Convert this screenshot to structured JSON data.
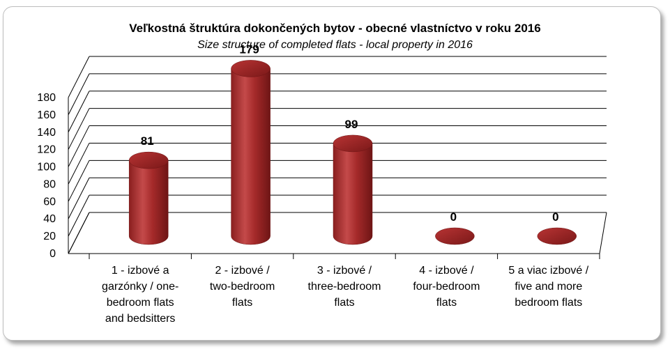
{
  "chart_data": {
    "type": "bar",
    "style": "3d-cylinder",
    "title": "Veľkostná štruktúra dokončených bytov  - obecné vlastníctvo v  roku 2016",
    "subtitle": "Size structure of completed flats - local property in 2016",
    "categories": [
      [
        "1 - izbové a",
        "garzónky / one-",
        "bedroom flats",
        "and bedsitters"
      ],
      [
        "2 - izbové /",
        "two-bedroom",
        "flats"
      ],
      [
        "3 - izbové /",
        "three-bedroom",
        "flats"
      ],
      [
        "4 - izbové /",
        "four-bedroom",
        "flats"
      ],
      [
        "5 a viac izbové /",
        "five and more",
        "bedroom flats"
      ]
    ],
    "values": [
      81,
      179,
      99,
      0,
      0
    ],
    "data_labels": [
      "81",
      "179",
      "99",
      "0",
      "0"
    ],
    "ylim": [
      0,
      180
    ],
    "yticks": [
      "0",
      "20",
      "40",
      "60",
      "80",
      "100",
      "120",
      "140",
      "160",
      "180"
    ],
    "grid": true,
    "legend": "none",
    "bar_color": "#a52a2a"
  }
}
